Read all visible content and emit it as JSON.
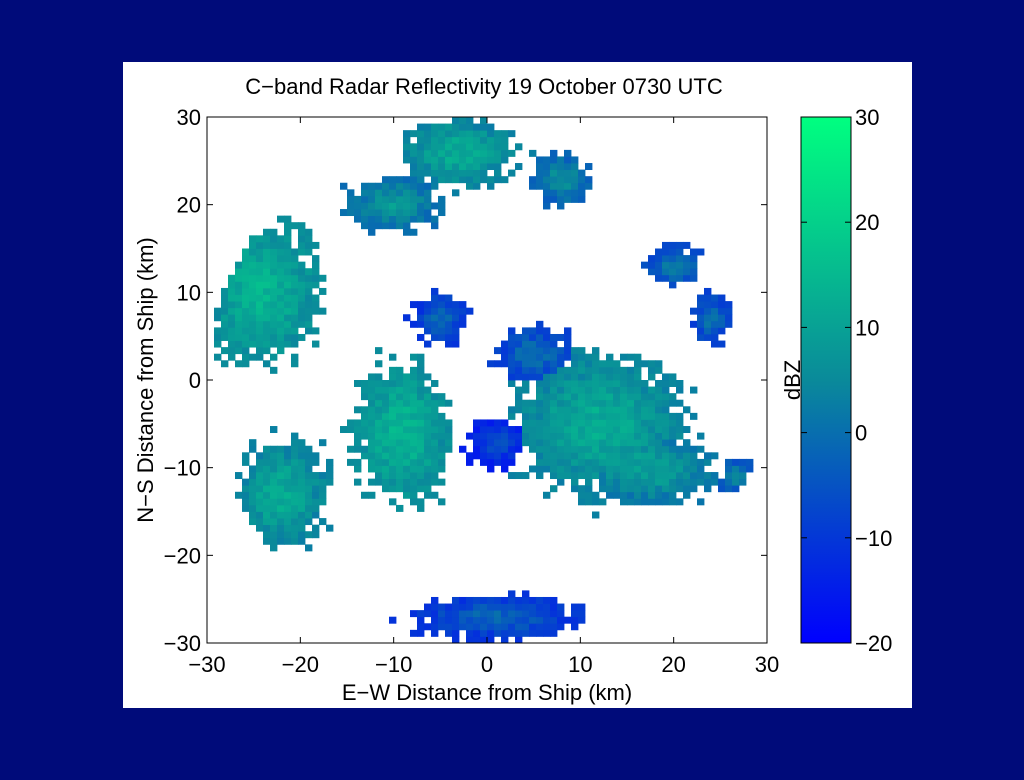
{
  "chart_data": {
    "type": "heatmap",
    "title": "C−band Radar Reflectivity 19 October 0730 UTC",
    "xlabel": "E−W Distance from Ship (km)",
    "ylabel": "N−S Distance from Ship (km)",
    "xlim": [
      -30,
      30
    ],
    "ylim": [
      -30,
      30
    ],
    "x_ticks": [
      -30,
      -20,
      -10,
      0,
      10,
      20,
      30
    ],
    "x_tick_labels": [
      "−30",
      "−20",
      "−10",
      "0",
      "10",
      "20",
      "30"
    ],
    "y_ticks": [
      -30,
      -20,
      -10,
      0,
      10,
      20,
      30
    ],
    "y_tick_labels": [
      "−30",
      "−20",
      "−10",
      "0",
      "10",
      "20",
      "30"
    ],
    "grid": false,
    "radar_radius_km": 30,
    "cell_size_km": 0.75,
    "colorbar": {
      "label": "dBZ",
      "range": [
        -20,
        30
      ],
      "ticks": [
        -20,
        -10,
        0,
        10,
        20,
        30
      ],
      "tick_labels": [
        "−20",
        "−10",
        "0",
        "10",
        "20",
        "30"
      ],
      "color_low": "#0000ff",
      "color_mid": "#0a8a9a",
      "color_high": "#00ff80",
      "position": "right"
    },
    "echo_regions": [
      {
        "cx": -24,
        "cy": 10,
        "rx": 6,
        "ry": 8,
        "dbz": 14
      },
      {
        "cx": -22,
        "cy": -13,
        "rx": 5,
        "ry": 6,
        "dbz": 12
      },
      {
        "cx": -9,
        "cy": -6,
        "rx": 5,
        "ry": 8,
        "dbz": 14
      },
      {
        "cx": -3,
        "cy": 26,
        "rx": 6,
        "ry": 4,
        "dbz": 12
      },
      {
        "cx": -10,
        "cy": 20,
        "rx": 5,
        "ry": 3,
        "dbz": 8
      },
      {
        "cx": 12,
        "cy": -5,
        "rx": 9,
        "ry": 8,
        "dbz": 12
      },
      {
        "cx": 17,
        "cy": -10,
        "rx": 7,
        "ry": 4,
        "dbz": 10
      },
      {
        "cx": 5,
        "cy": 3,
        "rx": 4,
        "ry": 3,
        "dbz": 0
      },
      {
        "cx": 8,
        "cy": 23,
        "rx": 3,
        "ry": 3,
        "dbz": 6
      },
      {
        "cx": 20,
        "cy": 13,
        "rx": 3,
        "ry": 2,
        "dbz": 2
      },
      {
        "cx": 24,
        "cy": 7,
        "rx": 2,
        "ry": 3,
        "dbz": 0
      },
      {
        "cx": 1,
        "cy": -27,
        "rx": 9,
        "ry": 2.5,
        "dbz": -2
      },
      {
        "cx": -5,
        "cy": 7,
        "rx": 3,
        "ry": 3,
        "dbz": -2
      },
      {
        "cx": 27,
        "cy": -11,
        "rx": 2,
        "ry": 2,
        "dbz": 4
      },
      {
        "cx": 1,
        "cy": -7,
        "rx": 3,
        "ry": 3,
        "dbz": -6
      }
    ]
  }
}
